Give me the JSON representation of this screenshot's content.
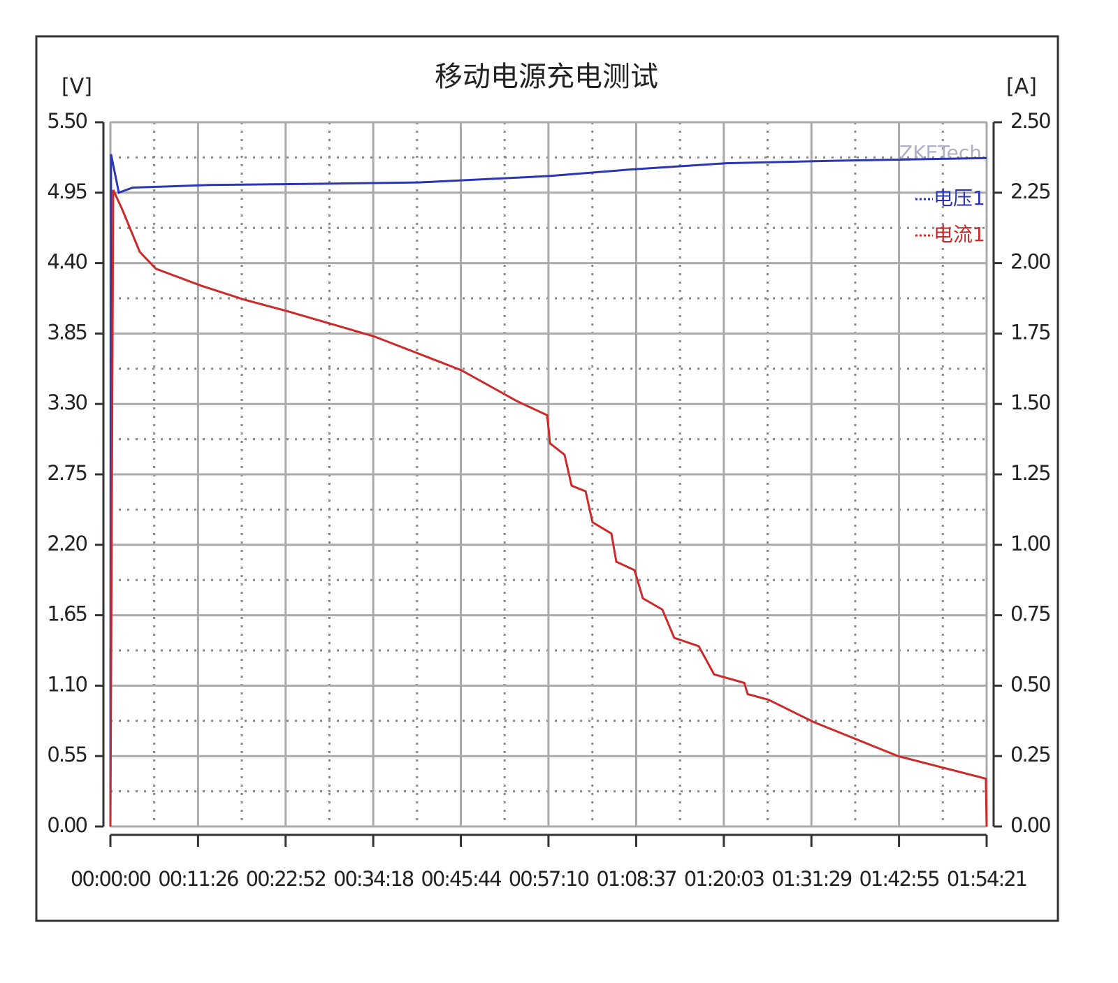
{
  "chart_data": {
    "type": "line",
    "title": "移动电源充电测试",
    "y_label": "[V]",
    "y2_label": "[A]",
    "watermark": "ZKETech",
    "xlim": [
      0,
      6861
    ],
    "xticks": [
      {
        "value": 0,
        "label": "00:00:00"
      },
      {
        "value": 686,
        "label": "00:11:26"
      },
      {
        "value": 1372,
        "label": "00:22:52"
      },
      {
        "value": 2058,
        "label": "00:34:18"
      },
      {
        "value": 2744,
        "label": "00:45:44"
      },
      {
        "value": 3430,
        "label": "00:57:10"
      },
      {
        "value": 4117,
        "label": "01:08:37"
      },
      {
        "value": 4803,
        "label": "01:20:03"
      },
      {
        "value": 5489,
        "label": "01:31:29"
      },
      {
        "value": 6175,
        "label": "01:42:55"
      },
      {
        "value": 6861,
        "label": "01:54:21"
      }
    ],
    "ylim": [
      0,
      5.5
    ],
    "yticks": [
      {
        "value": 0,
        "label": "0.00"
      },
      0.55,
      {
        "value": 1.1,
        "label": "1.10"
      },
      1.65,
      {
        "value": 2.2,
        "label": "2.20"
      },
      2.75,
      {
        "value": 3.3,
        "label": "3.30"
      },
      3.85,
      {
        "value": 4.4,
        "label": "4.40"
      },
      4.95,
      {
        "value": 5.5,
        "label": "5.50"
      }
    ],
    "y2lim": [
      0,
      2.5
    ],
    "y2ticks": [
      {
        "value": 0,
        "label": "0.00"
      },
      0.25,
      {
        "value": 0.5,
        "label": "0.50"
      },
      0.75,
      {
        "value": 1,
        "label": "1.00"
      },
      1.25,
      {
        "value": 1.5,
        "label": "1.50"
      },
      1.75,
      {
        "value": 2,
        "label": "2.00"
      },
      2.25,
      {
        "value": 2.5,
        "label": "2.50"
      }
    ],
    "grid": true,
    "series": [
      {
        "name": "电压1",
        "color": "#2b35b8",
        "axis": "y",
        "x": [
          0,
          5,
          66,
          175,
          777,
          1652,
          2418,
          3430,
          4059,
          4825,
          5700,
          6861
        ],
        "values": [
          0,
          5.25,
          4.95,
          4.99,
          5.01,
          5.02,
          5.03,
          5.08,
          5.13,
          5.18,
          5.2,
          5.22
        ]
      },
      {
        "name": "电流1",
        "color": "#cc2a2a",
        "axis": "y2",
        "x": [
          0,
          22,
          93,
          230,
          356,
          711,
          1051,
          1379,
          2063,
          2747,
          3184,
          3420,
          3442,
          3556,
          3611,
          3721,
          3775,
          3923,
          3961,
          4104,
          4169,
          4322,
          4415,
          4607,
          4727,
          4963,
          4990,
          5154,
          5510,
          6166,
          6855,
          6861
        ],
        "values": [
          0,
          2.26,
          2.19,
          2.04,
          1.98,
          1.92,
          1.87,
          1.83,
          1.74,
          1.62,
          1.51,
          1.46,
          1.36,
          1.32,
          1.21,
          1.19,
          1.08,
          1.04,
          0.94,
          0.91,
          0.81,
          0.77,
          0.67,
          0.64,
          0.54,
          0.51,
          0.47,
          0.45,
          0.37,
          0.25,
          0.17,
          0
        ]
      }
    ]
  }
}
